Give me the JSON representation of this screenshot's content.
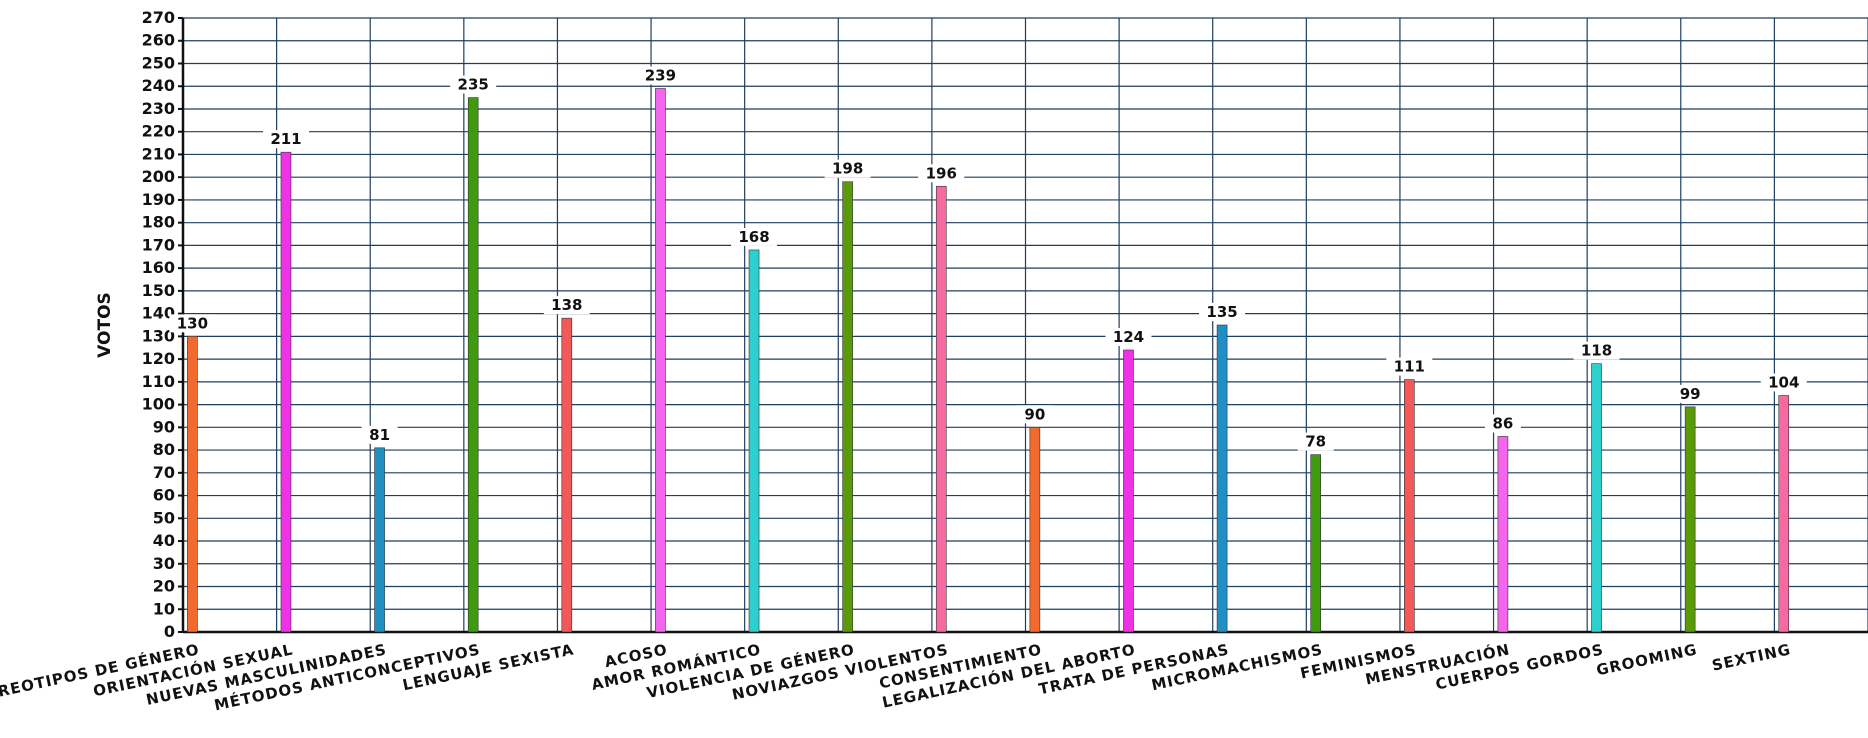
{
  "chart_data": {
    "type": "bar",
    "ylabel": "VOTOS",
    "ylim": [
      0,
      270
    ],
    "ytick_step": 10,
    "grid": true,
    "categories": [
      "ESTEREOTIPOS DE GÉNERO",
      "ORIENTACIÓN SEXUAL",
      "NUEVAS MASCULINIDADES",
      "MÉTODOS ANTICONCEPTIVOS",
      "LENGUAJE SEXISTA",
      "ACOSO",
      "AMOR ROMÁNTICO",
      "VIOLENCIA DE GÉNERO",
      "NOVIAZGOS VIOLENTOS",
      "CONSENTIMIENTO",
      "LEGALIZACIÓN DEL ABORTO",
      "TRATA DE PERSONAS",
      "MICROMACHISMOS",
      "FEMINISMOS",
      "MENSTRUACIÓN",
      "CUERPOS GORDOS",
      "GROOMING",
      "SEXTING"
    ],
    "values": [
      130,
      211,
      81,
      235,
      138,
      239,
      168,
      198,
      196,
      90,
      124,
      135,
      78,
      111,
      86,
      118,
      99,
      104
    ],
    "colors": [
      "#f26a2e",
      "#f032e6",
      "#1f8fc4",
      "#3f9a0f",
      "#f25a5a",
      "#f266ee",
      "#2ecfcf",
      "#5a9a0a",
      "#f56aa0",
      "#f26a2e",
      "#f032e6",
      "#1f8fc4",
      "#3f9a0f",
      "#f25a5a",
      "#f266ee",
      "#2ecfcf",
      "#5a9a0a",
      "#f56aa0"
    ],
    "grid_color": "#1f3f5f",
    "axis_color": "#111111"
  }
}
